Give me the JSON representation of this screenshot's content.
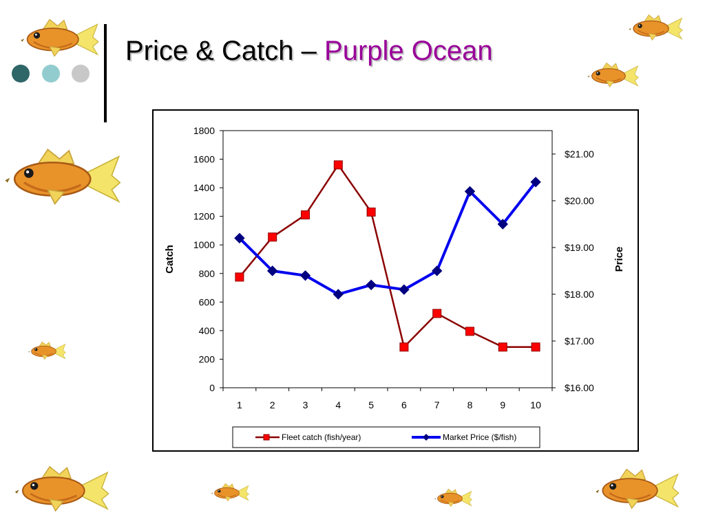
{
  "slide": {
    "title_main": "Price & Catch –",
    "title_accent": "Purple Ocean",
    "accent_color": "#990099",
    "bullet_colors": [
      "#2f6668",
      "#93ccce",
      "#c8c8c8"
    ]
  },
  "chart_data": {
    "type": "line",
    "x": [
      1,
      2,
      3,
      4,
      5,
      6,
      7,
      8,
      9,
      10
    ],
    "ylabel": "Catch",
    "y2label": "Price",
    "ylim": [
      0,
      1800
    ],
    "yticks": [
      0,
      200,
      400,
      600,
      800,
      1000,
      1200,
      1400,
      1600,
      1800
    ],
    "y2lim": [
      16,
      21.5
    ],
    "y2ticks": [
      16,
      17,
      18,
      19,
      20,
      21
    ],
    "y2tick_labels": [
      "$16.00",
      "$17.00",
      "$18.00",
      "$19.00",
      "$20.00",
      "$21.00"
    ],
    "grid": false,
    "legend_position": "bottom",
    "series": [
      {
        "name": "Fleet catch (fish/year)",
        "axis": "left",
        "color": "#8b0000",
        "marker": "square",
        "marker_color": "#ff0000",
        "values": [
          775,
          1055,
          1210,
          1560,
          1230,
          285,
          520,
          395,
          285,
          285
        ]
      },
      {
        "name": "Market Price ($/fish)",
        "axis": "right",
        "color": "#0000ee",
        "marker": "diamond",
        "marker_color": "#000080",
        "values": [
          19.2,
          18.5,
          18.4,
          18.0,
          18.2,
          18.1,
          18.5,
          20.2,
          19.5,
          20.4
        ]
      }
    ]
  }
}
